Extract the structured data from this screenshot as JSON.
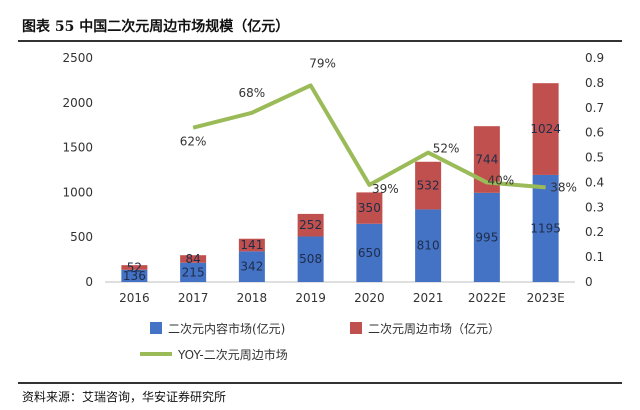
{
  "title": "图表 55 中国二次元周边市场规模（亿元）",
  "source": "资料来源：艾瑞咨询，华安证券研究所",
  "chart_data": {
    "type": "bar",
    "stacked": true,
    "categories": [
      "2016",
      "2017",
      "2018",
      "2019",
      "2020",
      "2021",
      "2022E",
      "2023E"
    ],
    "series": [
      {
        "name": "二次元内容市场(亿元)",
        "type": "bar",
        "axis": "left",
        "color": "#4472C4",
        "values": [
          136,
          215,
          342,
          508,
          650,
          810,
          995,
          1195
        ]
      },
      {
        "name": "二次元周边市场（亿元）",
        "type": "bar",
        "axis": "left",
        "color": "#C0504D",
        "values": [
          52,
          84,
          141,
          252,
          350,
          532,
          744,
          1024
        ]
      },
      {
        "name": "YOY-二次元周边市场",
        "type": "line",
        "axis": "right",
        "color": "#9BBB59",
        "values": [
          null,
          0.62,
          0.68,
          0.79,
          0.39,
          0.52,
          0.4,
          0.38
        ],
        "labels": [
          "",
          "62%",
          "68%",
          "79%",
          "39%",
          "52%",
          "40%",
          "38%"
        ]
      }
    ],
    "y_left": {
      "min": 0,
      "max": 2500,
      "ticks": [
        "0",
        "500",
        "1000",
        "1500",
        "2000",
        "2500"
      ]
    },
    "y_right": {
      "min": 0,
      "max": 0.9,
      "ticks": [
        "0",
        "0.1",
        "0.2",
        "0.3",
        "0.4",
        "0.5",
        "0.6",
        "0.7",
        "0.8",
        "0.9"
      ]
    },
    "grid": false,
    "legend_position": "bottom"
  }
}
